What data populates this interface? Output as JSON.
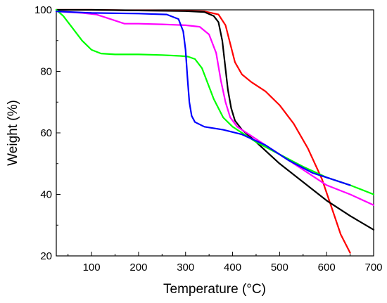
{
  "chart_data": {
    "type": "line",
    "title": "",
    "xlabel": "Temperature (°C)",
    "ylabel": "Weight (%)",
    "xlim": [
      25,
      700
    ],
    "ylim": [
      20,
      100
    ],
    "x_ticks": [
      100,
      200,
      300,
      400,
      500,
      600,
      700
    ],
    "y_ticks": [
      20,
      40,
      60,
      80,
      100
    ],
    "grid": false,
    "legend": "none",
    "series": [
      {
        "color": "#ff0000",
        "points": [
          [
            25,
            100
          ],
          [
            100,
            100
          ],
          [
            200,
            99.8
          ],
          [
            300,
            99.7
          ],
          [
            340,
            99.5
          ],
          [
            370,
            98.5
          ],
          [
            385,
            95
          ],
          [
            395,
            89
          ],
          [
            405,
            83
          ],
          [
            420,
            79
          ],
          [
            440,
            76.5
          ],
          [
            470,
            73.5
          ],
          [
            500,
            69
          ],
          [
            530,
            63
          ],
          [
            560,
            55
          ],
          [
            590,
            45
          ],
          [
            610,
            36
          ],
          [
            630,
            27
          ],
          [
            650,
            21
          ]
        ]
      },
      {
        "color": "#000000",
        "points": [
          [
            25,
            100
          ],
          [
            100,
            100
          ],
          [
            200,
            99.8
          ],
          [
            300,
            99.6
          ],
          [
            340,
            99.3
          ],
          [
            360,
            98
          ],
          [
            370,
            96
          ],
          [
            378,
            90
          ],
          [
            384,
            82
          ],
          [
            390,
            74
          ],
          [
            397,
            68
          ],
          [
            405,
            64
          ],
          [
            420,
            61
          ],
          [
            450,
            57
          ],
          [
            500,
            50
          ],
          [
            550,
            44
          ],
          [
            600,
            38
          ],
          [
            650,
            33
          ],
          [
            700,
            28.5
          ]
        ]
      },
      {
        "color": "#ff00ff",
        "points": [
          [
            25,
            99.5
          ],
          [
            80,
            99
          ],
          [
            110,
            98.5
          ],
          [
            140,
            97
          ],
          [
            170,
            95.5
          ],
          [
            200,
            95.5
          ],
          [
            250,
            95.3
          ],
          [
            300,
            95
          ],
          [
            330,
            94.5
          ],
          [
            350,
            92
          ],
          [
            365,
            86
          ],
          [
            375,
            77
          ],
          [
            385,
            70
          ],
          [
            395,
            65
          ],
          [
            410,
            62
          ],
          [
            450,
            58
          ],
          [
            500,
            53
          ],
          [
            550,
            48
          ],
          [
            600,
            43
          ],
          [
            650,
            40
          ],
          [
            700,
            36.5
          ]
        ]
      },
      {
        "color": "#00ff00",
        "points": [
          [
            25,
            100
          ],
          [
            40,
            98
          ],
          [
            60,
            94
          ],
          [
            80,
            90
          ],
          [
            100,
            87
          ],
          [
            120,
            85.8
          ],
          [
            150,
            85.5
          ],
          [
            200,
            85.5
          ],
          [
            250,
            85.3
          ],
          [
            290,
            85
          ],
          [
            305,
            84.8
          ],
          [
            320,
            84
          ],
          [
            335,
            81
          ],
          [
            345,
            77
          ],
          [
            360,
            71
          ],
          [
            380,
            65
          ],
          [
            400,
            62
          ],
          [
            450,
            57
          ],
          [
            500,
            53
          ],
          [
            550,
            49
          ],
          [
            600,
            45.5
          ],
          [
            650,
            43
          ],
          [
            700,
            40
          ]
        ]
      },
      {
        "color": "#0000ff",
        "points": [
          [
            25,
            99.5
          ],
          [
            100,
            99
          ],
          [
            200,
            98.8
          ],
          [
            260,
            98.5
          ],
          [
            285,
            97
          ],
          [
            295,
            93
          ],
          [
            300,
            87
          ],
          [
            304,
            78
          ],
          [
            308,
            70
          ],
          [
            313,
            65.5
          ],
          [
            320,
            63.5
          ],
          [
            340,
            62
          ],
          [
            380,
            61
          ],
          [
            420,
            59.5
          ],
          [
            470,
            56
          ],
          [
            520,
            51
          ],
          [
            570,
            47
          ],
          [
            610,
            45
          ],
          [
            650,
            43
          ]
        ]
      }
    ]
  }
}
